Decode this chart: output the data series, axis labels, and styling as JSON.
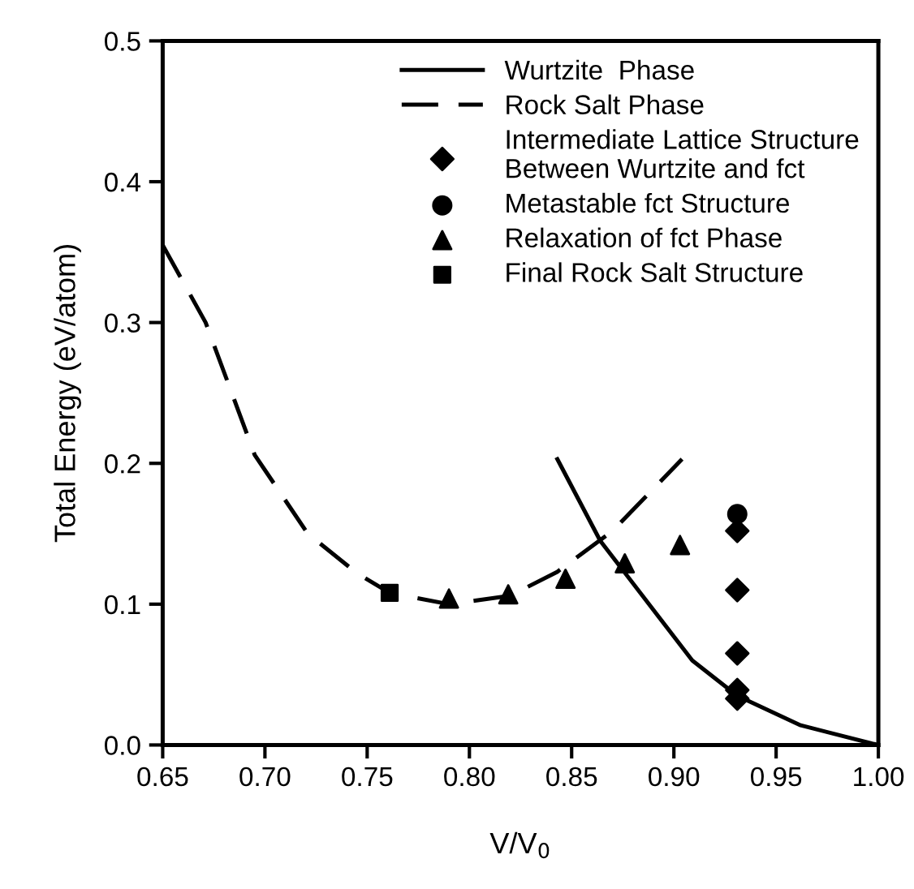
{
  "chart_data": {
    "type": "line",
    "xlabel": "V/V$_{0}$",
    "ylabel": "Total Energy (eV/atom)",
    "xlim": [
      0.65,
      1.0
    ],
    "xticks": [
      {
        "value": 0.65,
        "label": "0.65"
      },
      {
        "value": 0.7,
        "label": "0.70"
      },
      {
        "value": 0.75,
        "label": "0.75"
      },
      {
        "value": 0.8,
        "label": "0.80"
      },
      {
        "value": 0.85,
        "label": "0.85"
      },
      {
        "value": 0.9,
        "label": "0.90"
      },
      {
        "value": 0.95,
        "label": "0.95"
      },
      {
        "value": 1.0,
        "label": "1.00"
      }
    ],
    "ylim": [
      0,
      0.5
    ],
    "yticks": [
      {
        "value": 0,
        "label": "0.0"
      },
      0.1,
      0.2,
      0.3,
      0.4,
      0.5
    ],
    "grid": false,
    "legend": "top right",
    "series": [
      {
        "name": "Wurtzite  Phase",
        "line_style": "solid",
        "color": "#000000",
        "x": [
          0.843,
          0.864,
          0.909,
          0.931,
          0.962,
          0.997,
          1.0
        ],
        "values": [
          0.203,
          0.145,
          0.06,
          0.035,
          0.014,
          0.001,
          0.0
        ]
      },
      {
        "name": "Rock Salt Phase",
        "line_style": "dashed",
        "color": "#000000",
        "x": [
          0.65,
          0.671,
          0.695,
          0.721,
          0.745,
          0.761,
          0.79,
          0.82,
          0.843,
          0.87,
          0.904
        ],
        "values": [
          0.355,
          0.3,
          0.206,
          0.15,
          0.122,
          0.108,
          0.1,
          0.106,
          0.123,
          0.152,
          0.203
        ]
      },
      {
        "name": "Intermediate Lattice Structure\nBetween Wurtzite and fct",
        "type": "scatter",
        "marker": "diamond",
        "color": "#000000",
        "x": [
          0.931,
          0.931,
          0.931,
          0.931,
          0.931
        ],
        "values": [
          0.152,
          0.11,
          0.065,
          0.039,
          0.033
        ]
      },
      {
        "name": "Metastable fct Structure",
        "type": "scatter",
        "marker": "circle",
        "color": "#000000",
        "x": [
          0.931
        ],
        "values": [
          0.164
        ]
      },
      {
        "name": "Relaxation of fct Phase",
        "type": "scatter",
        "marker": "triangle",
        "color": "#000000",
        "x": [
          0.79,
          0.819,
          0.847,
          0.876,
          0.903
        ],
        "values": [
          0.104,
          0.107,
          0.118,
          0.129,
          0.142
        ]
      },
      {
        "name": "Final Rock Salt Structure",
        "type": "scatter",
        "marker": "square",
        "color": "#000000",
        "x": [
          0.761
        ],
        "values": [
          0.108
        ]
      }
    ]
  }
}
